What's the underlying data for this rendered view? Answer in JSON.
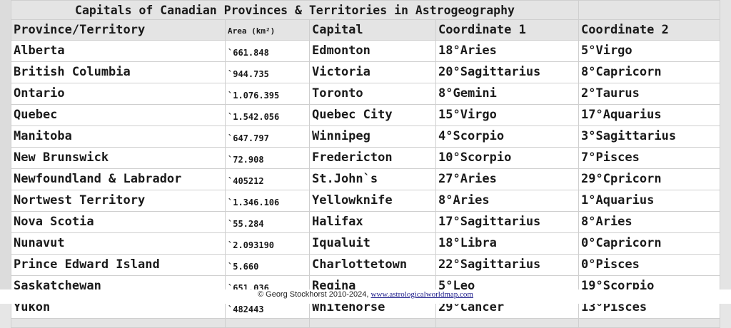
{
  "title": "Capitals of Canadian Provinces & Territories in Astrogeography",
  "headers": [
    "Province/Territory",
    "Area (km²)",
    "Capital",
    "Coordinate 1",
    "Coordinate 2"
  ],
  "rows": [
    [
      "Alberta",
      "`661.848",
      "Edmonton",
      "18°Aries",
      "5°Virgo"
    ],
    [
      "British Columbia",
      "`944.735",
      "Victoria",
      "20°Sagittarius",
      "8°Capricorn"
    ],
    [
      "Ontario",
      "`1.076.395",
      "Toronto",
      "8°Gemini",
      "2°Taurus"
    ],
    [
      "Quebec",
      "`1.542.056",
      "Quebec City",
      "15°Virgo",
      "17°Aquarius"
    ],
    [
      "Manitoba",
      "`647.797",
      "Winnipeg",
      "4°Scorpio",
      "3°Sagittarius"
    ],
    [
      "New Brunswick",
      "`72.908",
      "Fredericton",
      "10°Scorpio",
      "7°Pisces"
    ],
    [
      "Newfoundland & Labrador",
      "`405212",
      "St.John`s",
      "27°Aries",
      "29°Cpricorn"
    ],
    [
      "Nortwest Territory",
      "`1.346.106",
      "Yellowknife",
      "8°Aries",
      "1°Aquarius"
    ],
    [
      "Nova Scotia",
      "`55.284",
      "Halifax",
      "17°Sagittarius",
      "8°Aries"
    ],
    [
      "Nunavut",
      "`2.093190",
      "Iqualuit",
      "18°Libra",
      "0°Capricorn"
    ],
    [
      "Prince Edward Island",
      "`5.660",
      "Charlottetown",
      "22°Sagittarius",
      "0°Pisces"
    ],
    [
      "Saskatchewan",
      "`651.036",
      "Regina",
      "5°Leo",
      "19°Scorpio"
    ],
    [
      "Yukon",
      "`482443",
      "Whitehorse",
      "29°Cancer",
      "13°Pisces"
    ]
  ],
  "footer": {
    "copyright": "©  Georg Stockhorst  2010-2024, ",
    "link": "www.astrologicalworldmap.com"
  }
}
